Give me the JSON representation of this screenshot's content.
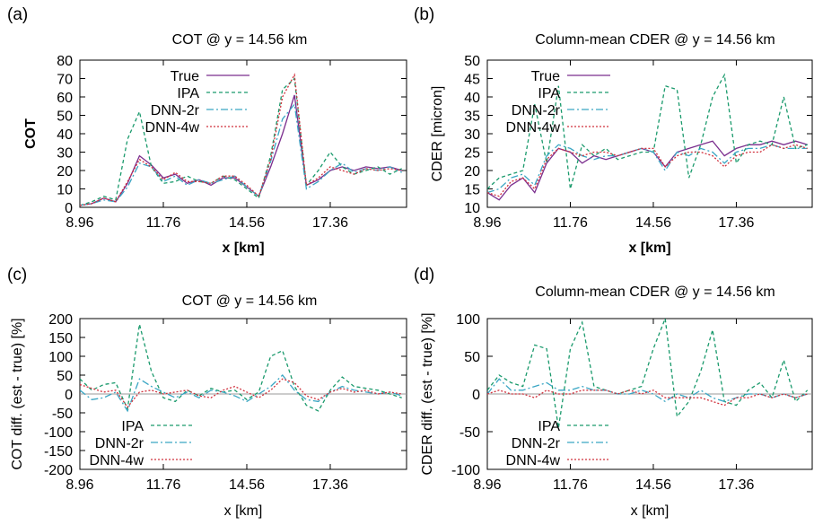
{
  "colors": {
    "true": "#7b2e8e",
    "ipa": "#1a9a6c",
    "dnn2r": "#3aa6c4",
    "dnn4w": "#d0303c",
    "zero_line": "#999999"
  },
  "chart_data": [
    {
      "panel_label": "(a)",
      "type": "line",
      "title": "COT @ y = 14.56 km",
      "xlabel": "x [km]",
      "ylabel": "COT",
      "xlim": [
        8.96,
        19.92
      ],
      "ylim": [
        0,
        80
      ],
      "xticks": [
        8.96,
        11.76,
        14.56,
        17.36
      ],
      "xtick_labels": [
        "8.96",
        "11.76",
        "14.56",
        "17.36"
      ],
      "yticks": [
        0,
        10,
        20,
        30,
        40,
        50,
        60,
        70,
        80
      ],
      "ytick_labels": [
        "0",
        "10",
        "20",
        "30",
        "40",
        "50",
        "60",
        "70",
        "80"
      ],
      "x": [
        8.96,
        9.36,
        9.76,
        10.16,
        10.56,
        10.96,
        11.36,
        11.76,
        12.16,
        12.56,
        12.96,
        13.36,
        13.76,
        14.16,
        14.56,
        14.96,
        15.36,
        15.76,
        16.16,
        16.56,
        16.96,
        17.36,
        17.76,
        18.16,
        18.56,
        18.96,
        19.36,
        19.76
      ],
      "series": [
        {
          "name": "True",
          "color_key": "true",
          "dash": "",
          "values": [
            1,
            2,
            5,
            3,
            13,
            28,
            23,
            16,
            18,
            13,
            15,
            12,
            16,
            16,
            11,
            6,
            22,
            40,
            61,
            12,
            15,
            20,
            22,
            20,
            22,
            21,
            22,
            20
          ]
        },
        {
          "name": "IPA",
          "color_key": "ipa",
          "dash": "4,3",
          "values": [
            1,
            3,
            6,
            4,
            37,
            52,
            22,
            13,
            14,
            17,
            14,
            13,
            17,
            15,
            10,
            5,
            28,
            64,
            70,
            12,
            20,
            30,
            22,
            18,
            20,
            22,
            18,
            21
          ]
        },
        {
          "name": "DNN-2r",
          "color_key": "dnn2r",
          "dash": "8,3,2,3",
          "values": [
            1,
            2,
            4,
            3,
            11,
            24,
            22,
            14,
            17,
            12,
            15,
            13,
            15,
            17,
            11,
            6,
            25,
            48,
            56,
            10,
            14,
            20,
            24,
            19,
            21,
            20,
            22,
            19
          ]
        },
        {
          "name": "DNN-4w",
          "color_key": "dnn4w",
          "dash": "2,2",
          "values": [
            1,
            2,
            5,
            3,
            14,
            26,
            22,
            15,
            19,
            14,
            14,
            13,
            17,
            17,
            12,
            6,
            26,
            60,
            72,
            12,
            16,
            22,
            20,
            18,
            21,
            20,
            21,
            20
          ]
        }
      ],
      "legend": "top-left"
    },
    {
      "panel_label": "(b)",
      "type": "line",
      "title": "Column-mean CDER @ y = 14.56 km",
      "xlabel": "x [km]",
      "ylabel": "CDER [micron]",
      "xlim": [
        8.96,
        19.92
      ],
      "ylim": [
        10,
        50
      ],
      "xticks": [
        8.96,
        11.76,
        14.56,
        17.36
      ],
      "xtick_labels": [
        "8.96",
        "11.76",
        "14.56",
        "17.36"
      ],
      "yticks": [
        10,
        15,
        20,
        25,
        30,
        35,
        40,
        45,
        50
      ],
      "ytick_labels": [
        "10",
        "15",
        "20",
        "25",
        "30",
        "35",
        "40",
        "45",
        "50"
      ],
      "x": [
        8.96,
        9.36,
        9.76,
        10.16,
        10.56,
        10.96,
        11.36,
        11.76,
        12.16,
        12.56,
        12.96,
        13.36,
        13.76,
        14.16,
        14.56,
        14.96,
        15.36,
        15.76,
        16.16,
        16.56,
        16.96,
        17.36,
        17.76,
        18.16,
        18.56,
        18.96,
        19.36,
        19.76
      ],
      "series": [
        {
          "name": "True",
          "color_key": "true",
          "dash": "",
          "values": [
            14,
            12,
            16,
            18,
            14,
            22,
            26,
            25,
            22,
            24,
            23,
            24,
            25,
            26,
            25,
            21,
            25,
            26,
            27,
            28,
            24,
            26,
            27,
            27,
            28,
            27,
            28,
            27
          ]
        },
        {
          "name": "IPA",
          "color_key": "ipa",
          "dash": "4,3",
          "values": [
            15,
            18,
            19,
            20,
            38,
            22,
            43,
            15,
            27,
            24,
            26,
            23,
            24,
            25,
            25,
            43,
            42,
            18,
            27,
            40,
            46,
            22,
            27,
            28,
            27,
            40,
            26,
            27
          ]
        },
        {
          "name": "DNN-2r",
          "color_key": "dnn2r",
          "dash": "8,3,2,3",
          "values": [
            14,
            15,
            18,
            19,
            16,
            24,
            27,
            26,
            24,
            23,
            24,
            24,
            25,
            26,
            25,
            20,
            25,
            24,
            26,
            25,
            22,
            25,
            26,
            26,
            27,
            26,
            26,
            26
          ]
        },
        {
          "name": "DNN-4w",
          "color_key": "dnn4w",
          "dash": "2,2",
          "values": [
            14,
            13,
            17,
            18,
            15,
            23,
            26,
            25,
            24,
            25,
            25,
            24,
            25,
            26,
            26,
            21,
            24,
            25,
            25,
            24,
            21,
            24,
            25,
            25,
            27,
            26,
            27,
            26
          ]
        }
      ],
      "legend": "top-left"
    },
    {
      "panel_label": "(c)",
      "type": "line",
      "title": "COT @ y = 14.56 km",
      "xlabel": "x [km]",
      "ylabel": "COT diff. (est - true) [%]",
      "xlim": [
        8.96,
        19.92
      ],
      "ylim": [
        -200,
        200
      ],
      "xticks": [
        8.96,
        11.76,
        14.56,
        17.36
      ],
      "xtick_labels": [
        "8.96",
        "11.76",
        "14.56",
        "17.36"
      ],
      "yticks": [
        -200,
        -150,
        -100,
        -50,
        0,
        50,
        100,
        150,
        200
      ],
      "ytick_labels": [
        "-200",
        "-150",
        "-100",
        "-50",
        "0",
        "50",
        "100",
        "150",
        "200"
      ],
      "zero_line": true,
      "x": [
        8.96,
        9.36,
        9.76,
        10.16,
        10.56,
        10.96,
        11.36,
        11.76,
        12.16,
        12.56,
        12.96,
        13.36,
        13.76,
        14.16,
        14.56,
        14.96,
        15.36,
        15.76,
        16.16,
        16.56,
        16.96,
        17.36,
        17.76,
        18.16,
        18.56,
        18.96,
        19.36,
        19.76
      ],
      "series": [
        {
          "name": "IPA",
          "color_key": "ipa",
          "dash": "4,3",
          "values": [
            40,
            10,
            25,
            30,
            -40,
            185,
            60,
            -10,
            -20,
            10,
            -5,
            15,
            5,
            10,
            -15,
            5,
            100,
            115,
            20,
            -30,
            -45,
            10,
            45,
            20,
            15,
            10,
            0,
            -10
          ]
        },
        {
          "name": "DNN-2r",
          "color_key": "dnn2r",
          "dash": "8,3,2,3",
          "values": [
            10,
            -15,
            -10,
            5,
            -45,
            40,
            20,
            5,
            -10,
            5,
            -10,
            10,
            5,
            -5,
            -20,
            0,
            20,
            50,
            10,
            -15,
            -20,
            5,
            20,
            10,
            5,
            0,
            5,
            -5
          ]
        },
        {
          "name": "DNN-4w",
          "color_key": "dnn4w",
          "dash": "2,2",
          "values": [
            25,
            15,
            5,
            10,
            -35,
            5,
            10,
            0,
            5,
            10,
            -5,
            -10,
            10,
            20,
            5,
            -10,
            10,
            40,
            30,
            -5,
            -15,
            5,
            15,
            5,
            10,
            0,
            5,
            0
          ]
        }
      ],
      "legend": "bottom-left"
    },
    {
      "panel_label": "(d)",
      "type": "line",
      "title": "Column-mean CDER @ y = 14.56 km",
      "xlabel": "x [km]",
      "ylabel": "CDER diff. (est - true) [%]",
      "xlim": [
        8.96,
        19.92
      ],
      "ylim": [
        -100,
        100
      ],
      "xticks": [
        8.96,
        11.76,
        14.56,
        17.36
      ],
      "xtick_labels": [
        "8.96",
        "11.76",
        "14.56",
        "17.36"
      ],
      "yticks": [
        -100,
        -50,
        0,
        50,
        100
      ],
      "ytick_labels": [
        "-100",
        "-50",
        "0",
        "50",
        "100"
      ],
      "zero_line": true,
      "x": [
        8.96,
        9.36,
        9.76,
        10.16,
        10.56,
        10.96,
        11.36,
        11.76,
        12.16,
        12.56,
        12.96,
        13.36,
        13.76,
        14.16,
        14.56,
        14.96,
        15.36,
        15.76,
        16.16,
        16.56,
        16.96,
        17.36,
        17.76,
        18.16,
        18.56,
        18.96,
        19.36,
        19.76
      ],
      "series": [
        {
          "name": "IPA",
          "color_key": "ipa",
          "dash": "4,3",
          "values": [
            5,
            25,
            15,
            10,
            65,
            60,
            -45,
            60,
            95,
            10,
            5,
            0,
            5,
            10,
            60,
            100,
            -30,
            -10,
            30,
            85,
            -10,
            -15,
            5,
            15,
            -5,
            45,
            -10,
            5
          ]
        },
        {
          "name": "DNN-2r",
          "color_key": "dnn2r",
          "dash": "8,3,2,3",
          "values": [
            0,
            20,
            5,
            5,
            10,
            15,
            5,
            5,
            10,
            5,
            5,
            0,
            0,
            5,
            0,
            -10,
            0,
            -5,
            5,
            -5,
            -10,
            -5,
            0,
            0,
            -5,
            0,
            -5,
            0
          ]
        },
        {
          "name": "DNN-4w",
          "color_key": "dnn4w",
          "dash": "2,2",
          "values": [
            0,
            5,
            0,
            0,
            -5,
            5,
            0,
            0,
            5,
            5,
            5,
            0,
            5,
            0,
            5,
            -5,
            -5,
            -5,
            -5,
            -10,
            -15,
            -5,
            -5,
            0,
            -5,
            0,
            -5,
            0
          ]
        }
      ],
      "legend": "bottom-left"
    }
  ]
}
